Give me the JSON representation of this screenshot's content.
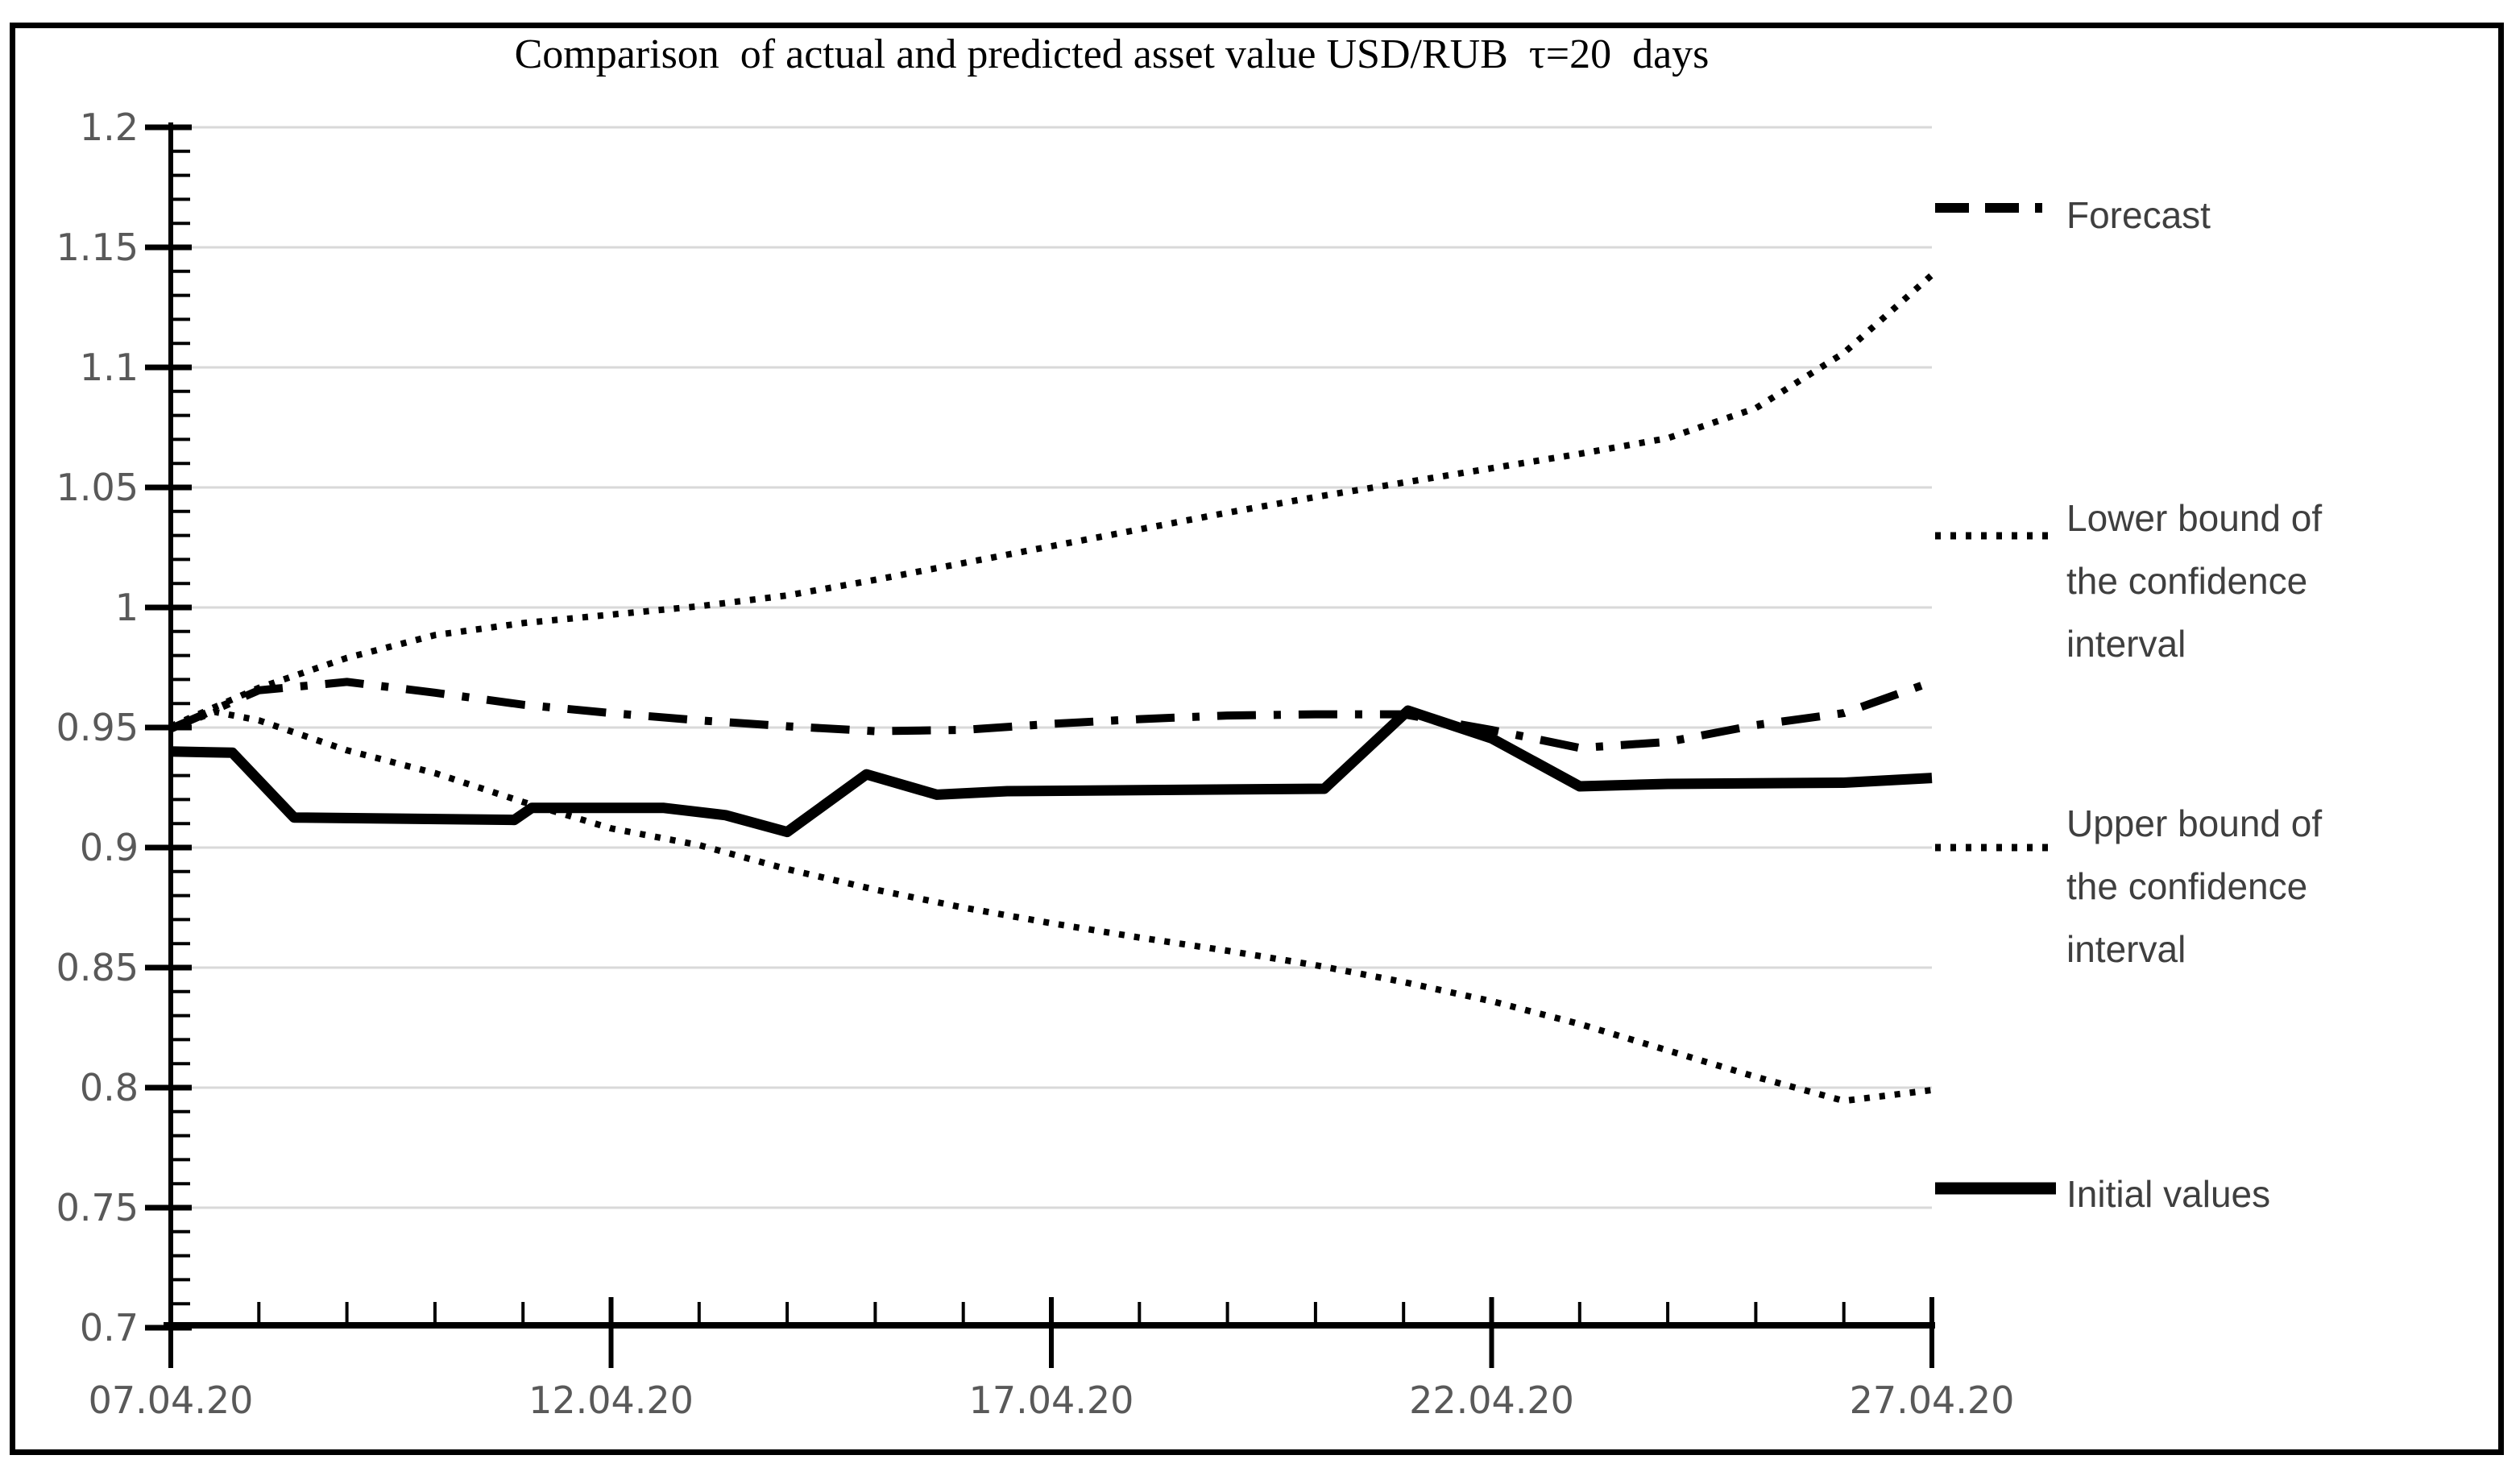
{
  "chart_data": {
    "type": "line",
    "title": "Comparison  of actual and predicted asset value USD/RUB  τ=20  days",
    "x_axis": {
      "tick_labels": [
        "07.04.20",
        "12.04.20",
        "17.04.20",
        "22.04.20",
        "27.04.20"
      ],
      "tick_days": [
        0,
        5,
        10,
        15,
        20
      ],
      "minor_step_days": 1,
      "range_days": [
        0,
        20
      ]
    },
    "y_axis": {
      "min": 0.7,
      "max": 1.2,
      "major_step": 0.05,
      "minor_step": 0.01,
      "tick_labels": [
        "1.2",
        "1.15",
        "1.1",
        "1.05",
        "1",
        "0.95",
        "0.9",
        "0.85",
        "0.8",
        "0.75",
        "0.7"
      ],
      "tick_values": [
        1.2,
        1.15,
        1.1,
        1.05,
        1.0,
        0.95,
        0.9,
        0.85,
        0.8,
        0.75,
        0.7
      ]
    },
    "grid": {
      "horizontal": true,
      "vertical": false,
      "color": "#d9d9d9"
    },
    "series": [
      {
        "name": "Forecast",
        "style": "long-dash-dot",
        "color": "#000000",
        "points": [
          [
            0,
            0.9495
          ],
          [
            1,
            0.9655
          ],
          [
            2,
            0.969
          ],
          [
            3,
            0.9645
          ],
          [
            4,
            0.9595
          ],
          [
            5,
            0.956
          ],
          [
            6,
            0.953
          ],
          [
            7,
            0.9505
          ],
          [
            8,
            0.9485
          ],
          [
            9,
            0.949
          ],
          [
            10,
            0.9515
          ],
          [
            11,
            0.9535
          ],
          [
            12,
            0.955
          ],
          [
            13,
            0.9555
          ],
          [
            14,
            0.9555
          ],
          [
            15,
            0.949
          ],
          [
            16,
            0.9415
          ],
          [
            17,
            0.944
          ],
          [
            18,
            0.951
          ],
          [
            19,
            0.956
          ],
          [
            20,
            0.969
          ]
        ]
      },
      {
        "name": "Lower bound of the confidence interval",
        "style": "dotted",
        "color": "#000000",
        "points": [
          [
            0,
            0.9495
          ],
          [
            0.5,
            0.9565
          ],
          [
            1,
            0.953
          ],
          [
            2,
            0.9405
          ],
          [
            3,
            0.931
          ],
          [
            4,
            0.919
          ],
          [
            5,
            0.908
          ],
          [
            6,
            0.901
          ],
          [
            7,
            0.891
          ],
          [
            8,
            0.8825
          ],
          [
            9,
            0.875
          ],
          [
            10,
            0.8685
          ],
          [
            11,
            0.8625
          ],
          [
            12,
            0.857
          ],
          [
            13,
            0.851
          ],
          [
            14,
            0.844
          ],
          [
            15,
            0.836
          ],
          [
            16,
            0.8265
          ],
          [
            17,
            0.8155
          ],
          [
            18,
            0.8045
          ],
          [
            19,
            0.7945
          ],
          [
            20,
            0.799
          ]
        ]
      },
      {
        "name": "Upper bound of the confidence interval",
        "style": "dotted",
        "color": "#000000",
        "points": [
          [
            0,
            0.9505
          ],
          [
            1,
            0.9665
          ],
          [
            2,
            0.979
          ],
          [
            3,
            0.9885
          ],
          [
            4,
            0.9935
          ],
          [
            5,
            0.997
          ],
          [
            6,
            1.0005
          ],
          [
            7,
            1.005
          ],
          [
            8,
            1.0115
          ],
          [
            9,
            1.0185
          ],
          [
            10,
            1.0255
          ],
          [
            11,
            1.0325
          ],
          [
            12,
            1.0395
          ],
          [
            13,
            1.046
          ],
          [
            14,
            1.052
          ],
          [
            15,
            1.058
          ],
          [
            16,
            1.064
          ],
          [
            17,
            1.0705
          ],
          [
            18,
            1.083
          ],
          [
            19,
            1.106
          ],
          [
            20,
            1.1385
          ]
        ]
      },
      {
        "name": "Initial values",
        "style": "solid",
        "color": "#000000",
        "points": [
          [
            0,
            0.94
          ],
          [
            0.7,
            0.9395
          ],
          [
            1.4,
            0.9125
          ],
          [
            3.9,
            0.9115
          ],
          [
            4.1,
            0.9165
          ],
          [
            5.6,
            0.9165
          ],
          [
            6.3,
            0.9135
          ],
          [
            7,
            0.9065
          ],
          [
            7.9,
            0.9305
          ],
          [
            8.7,
            0.922
          ],
          [
            9.5,
            0.9235
          ],
          [
            13.1,
            0.9245
          ],
          [
            14.05,
            0.957
          ],
          [
            15,
            0.9455
          ],
          [
            16,
            0.9255
          ],
          [
            17,
            0.9265
          ],
          [
            19,
            0.927
          ],
          [
            20,
            0.929
          ]
        ]
      }
    ],
    "legend": {
      "position": "right",
      "entries": [
        {
          "label_lines": [
            "Forecast"
          ],
          "style": "long-dash-dot"
        },
        {
          "label_lines": [
            "Lower bound of",
            "the confidence",
            "interval"
          ],
          "style": "dotted"
        },
        {
          "label_lines": [
            "Upper bound of",
            "the confidence",
            "interval"
          ],
          "style": "dotted"
        },
        {
          "label_lines": [
            "Initial values"
          ],
          "style": "solid"
        }
      ]
    }
  },
  "colors": {
    "background": "#ffffff",
    "frame": "#000000",
    "axis": "#000000",
    "grid": "#d9d9d9",
    "tick_label": "#595959",
    "legend_text": "#3f3f3f",
    "series": "#000000"
  }
}
